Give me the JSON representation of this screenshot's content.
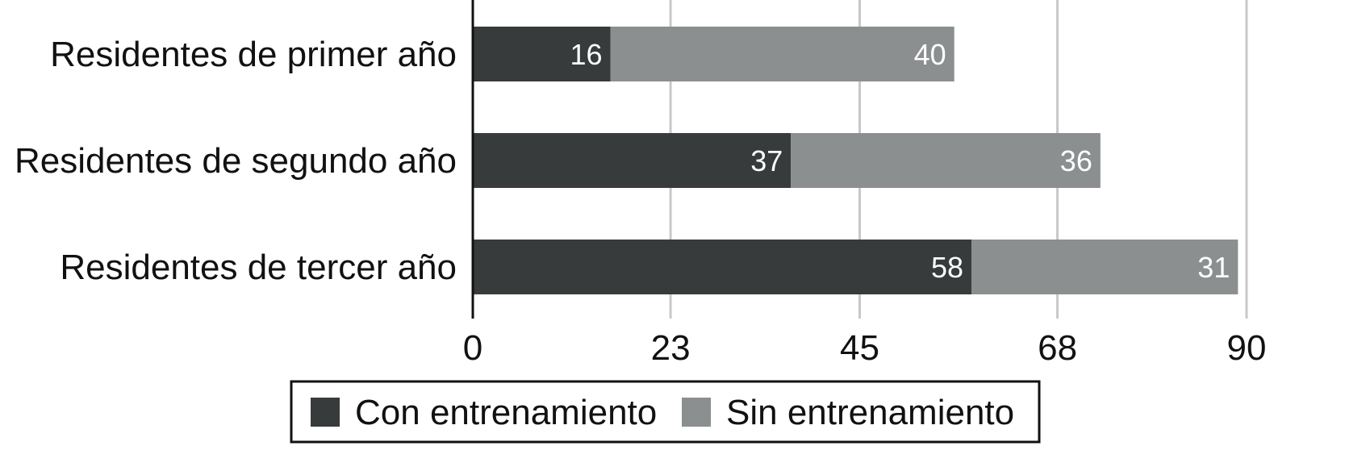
{
  "chart_data": {
    "type": "bar",
    "orientation": "horizontal",
    "stacked": true,
    "categories": [
      "Residentes de primer año",
      "Residentes de segundo año",
      "Residentes de tercer año"
    ],
    "series": [
      {
        "name": "Con entrenamiento",
        "color": "#373b3b",
        "values": [
          16,
          37,
          58
        ]
      },
      {
        "name": "Sin entrenamiento",
        "color": "#8c8f8f",
        "values": [
          40,
          36,
          31
        ]
      }
    ],
    "xticks": [
      0,
      23,
      45,
      68,
      90
    ],
    "xlim": [
      0,
      90
    ],
    "grid": "vertical",
    "legend_position": "bottom"
  }
}
